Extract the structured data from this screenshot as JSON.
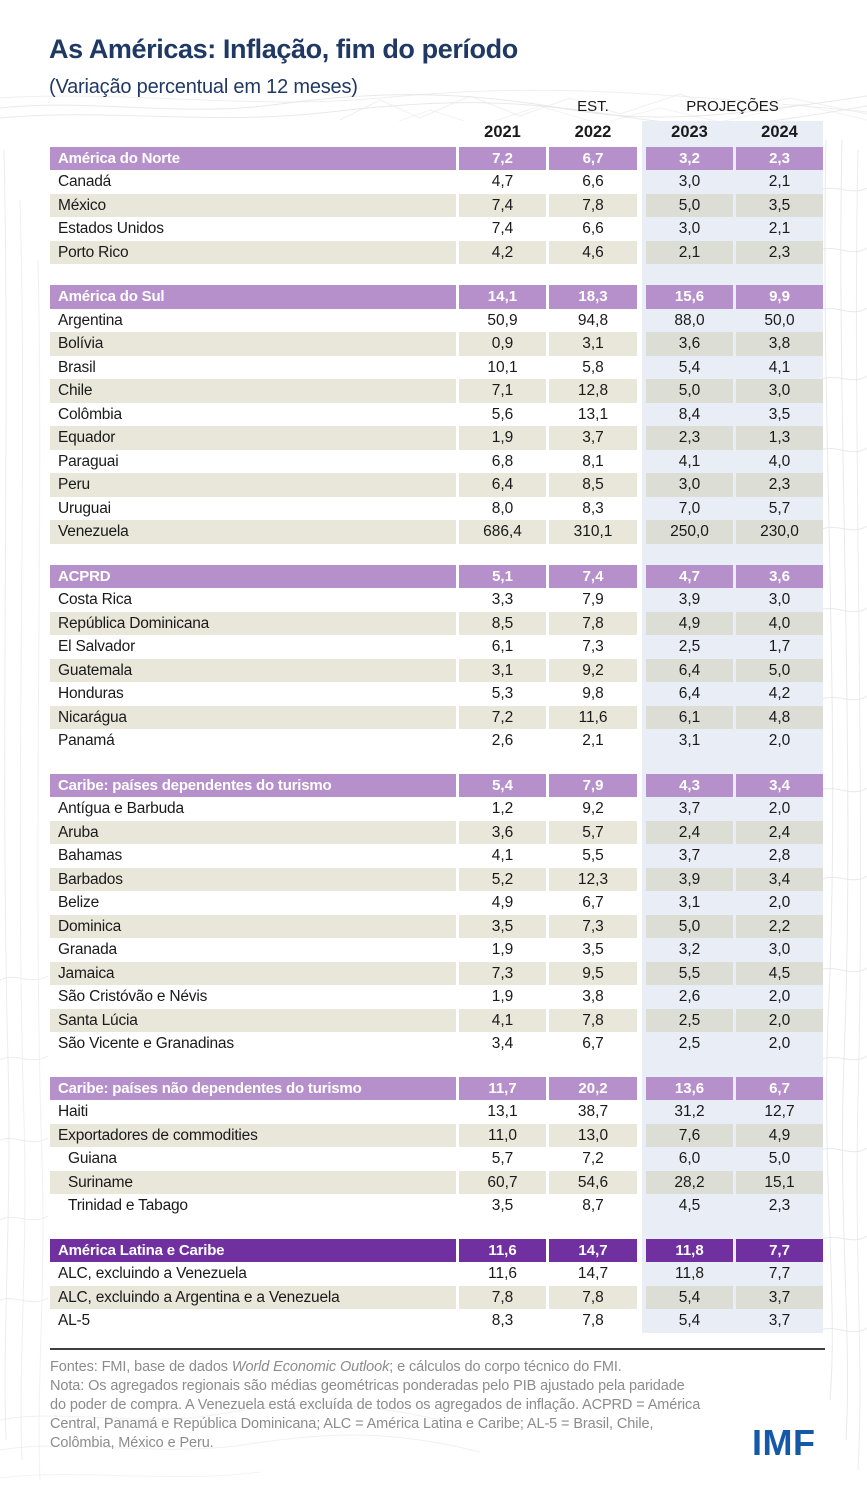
{
  "page": {
    "title": "As Américas: Inflação, fim do período",
    "subtitle": "(Variação percentual em 12 meses)",
    "logo": "IMF"
  },
  "colors": {
    "title_navy": "#1f3864",
    "section_header_light_purple": "#b690ca",
    "section_header_dark_purple": "#7030a0",
    "zebra_beige": "#e9e6da",
    "projections_band_blue": "#e9edf5",
    "footer_gray": "#8c8c8c",
    "imf_blue": "#1458a7"
  },
  "table": {
    "est_label": "EST.",
    "proj_label": "PROJEÇÕES",
    "years": [
      "2021",
      "2022",
      "2023",
      "2024"
    ],
    "sections": [
      {
        "label": "América do Norte",
        "style": "light",
        "values": [
          "7,2",
          "6,7",
          "3,2",
          "2,3"
        ],
        "rows": [
          {
            "label": "Canadá",
            "values": [
              "4,7",
              "6,6",
              "3,0",
              "2,1"
            ]
          },
          {
            "label": "México",
            "values": [
              "7,4",
              "7,8",
              "5,0",
              "3,5"
            ]
          },
          {
            "label": "Estados Unidos",
            "values": [
              "7,4",
              "6,6",
              "3,0",
              "2,1"
            ]
          },
          {
            "label": "Porto Rico",
            "values": [
              "4,2",
              "4,6",
              "2,1",
              "2,3"
            ]
          }
        ]
      },
      {
        "label": "América do Sul",
        "style": "light",
        "values": [
          "14,1",
          "18,3",
          "15,6",
          "9,9"
        ],
        "rows": [
          {
            "label": "Argentina",
            "values": [
              "50,9",
              "94,8",
              "88,0",
              "50,0"
            ]
          },
          {
            "label": "Bolívia",
            "values": [
              "0,9",
              "3,1",
              "3,6",
              "3,8"
            ]
          },
          {
            "label": "Brasil",
            "values": [
              "10,1",
              "5,8",
              "5,4",
              "4,1"
            ]
          },
          {
            "label": "Chile",
            "values": [
              "7,1",
              "12,8",
              "5,0",
              "3,0"
            ]
          },
          {
            "label": "Colômbia",
            "values": [
              "5,6",
              "13,1",
              "8,4",
              "3,5"
            ]
          },
          {
            "label": "Equador",
            "values": [
              "1,9",
              "3,7",
              "2,3",
              "1,3"
            ]
          },
          {
            "label": "Paraguai",
            "values": [
              "6,8",
              "8,1",
              "4,1",
              "4,0"
            ]
          },
          {
            "label": "Peru",
            "values": [
              "6,4",
              "8,5",
              "3,0",
              "2,3"
            ]
          },
          {
            "label": "Uruguai",
            "values": [
              "8,0",
              "8,3",
              "7,0",
              "5,7"
            ]
          },
          {
            "label": "Venezuela",
            "values": [
              "686,4",
              "310,1",
              "250,0",
              "230,0"
            ]
          }
        ]
      },
      {
        "label": "ACPRD",
        "style": "light",
        "values": [
          "5,1",
          "7,4",
          "4,7",
          "3,6"
        ],
        "rows": [
          {
            "label": "Costa Rica",
            "values": [
              "3,3",
              "7,9",
              "3,9",
              "3,0"
            ]
          },
          {
            "label": "República Dominicana",
            "values": [
              "8,5",
              "7,8",
              "4,9",
              "4,0"
            ]
          },
          {
            "label": "El Salvador",
            "values": [
              "6,1",
              "7,3",
              "2,5",
              "1,7"
            ]
          },
          {
            "label": "Guatemala",
            "values": [
              "3,1",
              "9,2",
              "6,4",
              "5,0"
            ]
          },
          {
            "label": "Honduras",
            "values": [
              "5,3",
              "9,8",
              "6,4",
              "4,2"
            ]
          },
          {
            "label": "Nicarágua",
            "values": [
              "7,2",
              "11,6",
              "6,1",
              "4,8"
            ]
          },
          {
            "label": "Panamá",
            "values": [
              "2,6",
              "2,1",
              "3,1",
              "2,0"
            ]
          }
        ]
      },
      {
        "label": "Caribe: países dependentes do turismo",
        "style": "light",
        "values": [
          "5,4",
          "7,9",
          "4,3",
          "3,4"
        ],
        "rows": [
          {
            "label": "Antígua e Barbuda",
            "values": [
              "1,2",
              "9,2",
              "3,7",
              "2,0"
            ]
          },
          {
            "label": "Aruba",
            "values": [
              "3,6",
              "5,7",
              "2,4",
              "2,4"
            ]
          },
          {
            "label": "Bahamas",
            "values": [
              "4,1",
              "5,5",
              "3,7",
              "2,8"
            ]
          },
          {
            "label": "Barbados",
            "values": [
              "5,2",
              "12,3",
              "3,9",
              "3,4"
            ]
          },
          {
            "label": "Belize",
            "values": [
              "4,9",
              "6,7",
              "3,1",
              "2,0"
            ]
          },
          {
            "label": "Dominica",
            "values": [
              "3,5",
              "7,3",
              "5,0",
              "2,2"
            ]
          },
          {
            "label": "Granada",
            "values": [
              "1,9",
              "3,5",
              "3,2",
              "3,0"
            ]
          },
          {
            "label": "Jamaica",
            "values": [
              "7,3",
              "9,5",
              "5,5",
              "4,5"
            ]
          },
          {
            "label": "São Cristóvão e Névis",
            "values": [
              "1,9",
              "3,8",
              "2,6",
              "2,0"
            ]
          },
          {
            "label": "Santa Lúcia",
            "values": [
              "4,1",
              "7,8",
              "2,5",
              "2,0"
            ]
          },
          {
            "label": "São Vicente e Granadinas",
            "values": [
              "3,4",
              "6,7",
              "2,5",
              "2,0"
            ]
          }
        ]
      },
      {
        "label": "Caribe: países não dependentes do turismo",
        "style": "light",
        "values": [
          "11,7",
          "20,2",
          "13,6",
          "6,7"
        ],
        "rows": [
          {
            "label": "Haiti",
            "values": [
              "13,1",
              "38,7",
              "31,2",
              "12,7"
            ]
          },
          {
            "label": "Exportadores de commodities",
            "values": [
              "11,0",
              "13,0",
              "7,6",
              "4,9"
            ]
          },
          {
            "label": "Guiana",
            "indent": 1,
            "values": [
              "5,7",
              "7,2",
              "6,0",
              "5,0"
            ]
          },
          {
            "label": "Suriname",
            "indent": 1,
            "values": [
              "60,7",
              "54,6",
              "28,2",
              "15,1"
            ]
          },
          {
            "label": "Trinidad e Tabago",
            "indent": 1,
            "values": [
              "3,5",
              "8,7",
              "4,5",
              "2,3"
            ]
          }
        ]
      },
      {
        "label": "América Latina e Caribe",
        "style": "dark",
        "values": [
          "11,6",
          "14,7",
          "11,8",
          "7,7"
        ],
        "rows": [
          {
            "label": "ALC, excluindo a Venezuela",
            "values": [
              "11,6",
              "14,7",
              "11,8",
              "7,7"
            ]
          },
          {
            "label": "ALC, excluindo a Argentina e a Venezuela",
            "values": [
              "7,8",
              "7,8",
              "5,4",
              "3,7"
            ]
          },
          {
            "label": "AL-5",
            "values": [
              "8,3",
              "7,8",
              "5,4",
              "3,7"
            ]
          }
        ]
      }
    ]
  },
  "footer": {
    "sources_prefix": "Fontes: FMI, base de dados ",
    "sources_italic": "World Economic Outlook",
    "sources_suffix": "; e cálculos do corpo técnico do FMI.",
    "note": "Nota: Os agregados regionais são médias geométricas ponderadas pelo PIB ajustado pela paridade do poder de compra. A Venezuela está excluída de todos os agregados de inflação. ACPRD = América Central, Panamá e República Dominicana; ALC = América Latina e Caribe; AL-5 = Brasil, Chile, Colômbia, México e Peru."
  }
}
